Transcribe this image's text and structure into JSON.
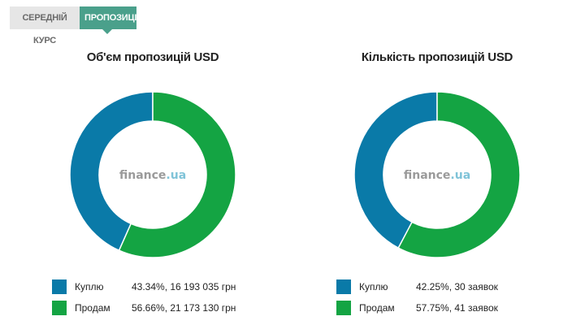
{
  "tabs": [
    {
      "label": "СЕРЕДНІЙ КУРС",
      "active": false
    },
    {
      "label": "ПРОПОЗИЦІЇ",
      "active": true
    }
  ],
  "colors": {
    "buy": "#0a7aa8",
    "sell": "#14a443",
    "tab_active": "#4aa08b"
  },
  "watermark": {
    "brand": "finance",
    "suffix": ".ua"
  },
  "chart_data": [
    {
      "type": "pie",
      "title": "Об'єм пропозицій USD",
      "series": [
        {
          "name": "Куплю",
          "value": 43.34,
          "value_text": "43.34%, 16 193 035 грн"
        },
        {
          "name": "Продам",
          "value": 56.66,
          "value_text": "56.66%, 21 173 130 грн"
        }
      ],
      "legend": "bottom"
    },
    {
      "type": "pie",
      "title": "Кількість пропозицій USD",
      "series": [
        {
          "name": "Куплю",
          "value": 42.25,
          "value_text": "42.25%, 30 заявок"
        },
        {
          "name": "Продам",
          "value": 57.75,
          "value_text": "57.75%, 41 заявок"
        }
      ],
      "legend": "bottom"
    }
  ]
}
